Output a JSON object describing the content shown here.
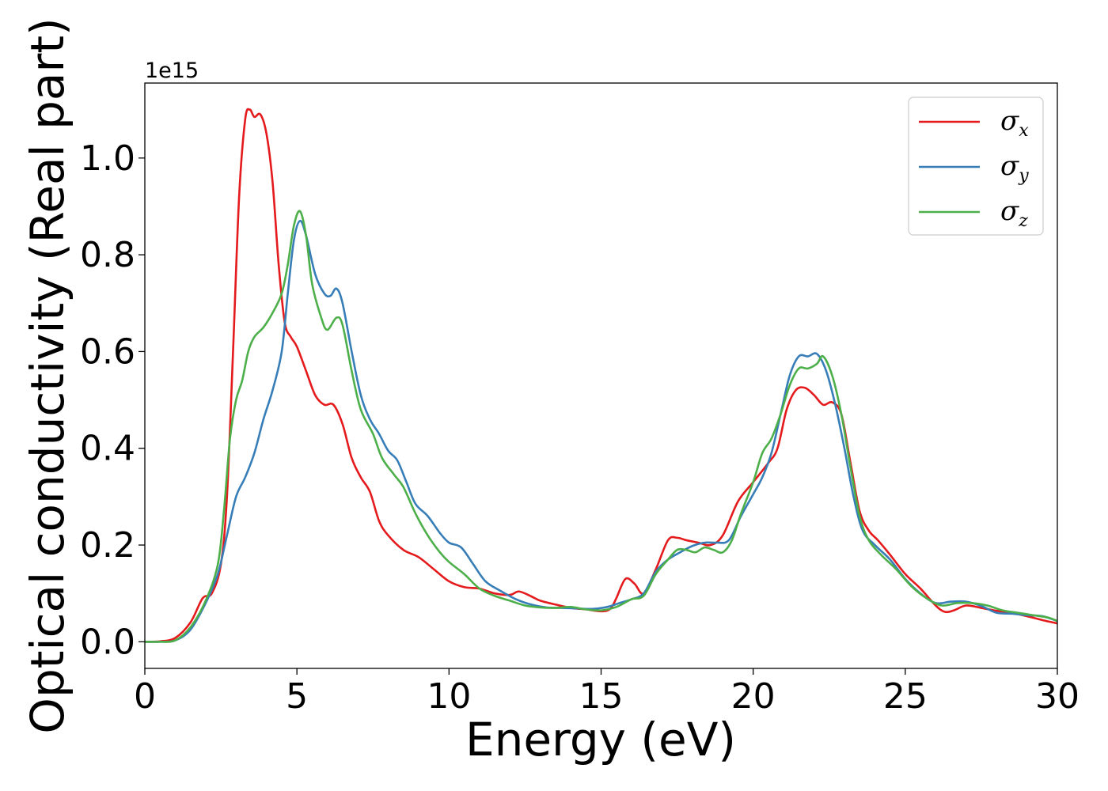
{
  "chart_data": {
    "type": "line",
    "title": "",
    "xlabel": "Energy (eV)",
    "ylabel": "Optical conductivity (Real part)",
    "y_offset_label": "1e15",
    "xlim": [
      0,
      30
    ],
    "ylim": [
      -0.055,
      1.155
    ],
    "y_scale_factor": 1000000000000000.0,
    "x_ticks": [
      0,
      5,
      10,
      15,
      20,
      25,
      30
    ],
    "y_ticks": [
      0.0,
      0.2,
      0.4,
      0.6,
      0.8,
      1.0
    ],
    "x_tick_labels": [
      "0",
      "5",
      "10",
      "15",
      "20",
      "25",
      "30"
    ],
    "y_tick_labels": [
      "0.0",
      "0.2",
      "0.4",
      "0.6",
      "0.8",
      "1.0"
    ],
    "grid": false,
    "legend_position": "top-right",
    "series": [
      {
        "name": "σx",
        "legend_symbol": "σ",
        "legend_subscript": "x",
        "color": "#e41a1c",
        "points": [
          [
            0,
            0.0
          ],
          [
            0.5,
            0.001
          ],
          [
            1.0,
            0.008
          ],
          [
            1.5,
            0.04
          ],
          [
            1.9,
            0.09
          ],
          [
            2.2,
            0.1
          ],
          [
            2.5,
            0.16
          ],
          [
            2.7,
            0.3
          ],
          [
            2.9,
            0.6
          ],
          [
            3.1,
            0.92
          ],
          [
            3.3,
            1.08
          ],
          [
            3.45,
            1.1
          ],
          [
            3.6,
            1.085
          ],
          [
            3.8,
            1.09
          ],
          [
            4.0,
            1.05
          ],
          [
            4.2,
            0.95
          ],
          [
            4.4,
            0.78
          ],
          [
            4.6,
            0.66
          ],
          [
            4.8,
            0.63
          ],
          [
            5.0,
            0.61
          ],
          [
            5.3,
            0.56
          ],
          [
            5.6,
            0.51
          ],
          [
            5.9,
            0.49
          ],
          [
            6.2,
            0.49
          ],
          [
            6.5,
            0.45
          ],
          [
            6.8,
            0.38
          ],
          [
            7.1,
            0.34
          ],
          [
            7.4,
            0.31
          ],
          [
            7.7,
            0.25
          ],
          [
            8.0,
            0.22
          ],
          [
            8.5,
            0.19
          ],
          [
            9.0,
            0.175
          ],
          [
            9.5,
            0.15
          ],
          [
            10.0,
            0.125
          ],
          [
            10.5,
            0.113
          ],
          [
            11.0,
            0.11
          ],
          [
            11.5,
            0.1
          ],
          [
            12.0,
            0.097
          ],
          [
            12.3,
            0.104
          ],
          [
            12.7,
            0.094
          ],
          [
            13.0,
            0.085
          ],
          [
            13.5,
            0.077
          ],
          [
            14.0,
            0.07
          ],
          [
            14.5,
            0.067
          ],
          [
            15.0,
            0.063
          ],
          [
            15.3,
            0.068
          ],
          [
            15.5,
            0.09
          ],
          [
            15.8,
            0.13
          ],
          [
            16.1,
            0.12
          ],
          [
            16.4,
            0.1
          ],
          [
            16.8,
            0.15
          ],
          [
            17.2,
            0.21
          ],
          [
            17.5,
            0.215
          ],
          [
            17.8,
            0.21
          ],
          [
            18.2,
            0.205
          ],
          [
            18.6,
            0.2
          ],
          [
            19.0,
            0.22
          ],
          [
            19.5,
            0.29
          ],
          [
            20.0,
            0.33
          ],
          [
            20.5,
            0.37
          ],
          [
            20.8,
            0.4
          ],
          [
            21.1,
            0.48
          ],
          [
            21.4,
            0.52
          ],
          [
            21.7,
            0.525
          ],
          [
            22.0,
            0.51
          ],
          [
            22.3,
            0.49
          ],
          [
            22.6,
            0.495
          ],
          [
            22.9,
            0.47
          ],
          [
            23.2,
            0.37
          ],
          [
            23.5,
            0.27
          ],
          [
            23.8,
            0.23
          ],
          [
            24.1,
            0.21
          ],
          [
            24.5,
            0.18
          ],
          [
            25.0,
            0.14
          ],
          [
            25.5,
            0.11
          ],
          [
            26.0,
            0.075
          ],
          [
            26.3,
            0.062
          ],
          [
            26.6,
            0.065
          ],
          [
            27.0,
            0.075
          ],
          [
            27.5,
            0.07
          ],
          [
            28.0,
            0.064
          ],
          [
            28.5,
            0.06
          ],
          [
            29.0,
            0.053
          ],
          [
            29.5,
            0.045
          ],
          [
            30.0,
            0.038
          ]
        ]
      },
      {
        "name": "σy",
        "legend_symbol": "σ",
        "legend_subscript": "y",
        "color": "#377eb8",
        "points": [
          [
            0,
            0.0
          ],
          [
            0.5,
            0.0
          ],
          [
            1.0,
            0.003
          ],
          [
            1.5,
            0.025
          ],
          [
            2.0,
            0.08
          ],
          [
            2.4,
            0.14
          ],
          [
            2.7,
            0.22
          ],
          [
            3.0,
            0.3
          ],
          [
            3.3,
            0.34
          ],
          [
            3.6,
            0.39
          ],
          [
            3.9,
            0.46
          ],
          [
            4.2,
            0.52
          ],
          [
            4.5,
            0.6
          ],
          [
            4.7,
            0.72
          ],
          [
            4.9,
            0.83
          ],
          [
            5.1,
            0.87
          ],
          [
            5.3,
            0.84
          ],
          [
            5.6,
            0.76
          ],
          [
            5.9,
            0.72
          ],
          [
            6.1,
            0.715
          ],
          [
            6.3,
            0.73
          ],
          [
            6.5,
            0.7
          ],
          [
            6.8,
            0.6
          ],
          [
            7.1,
            0.51
          ],
          [
            7.4,
            0.46
          ],
          [
            7.7,
            0.43
          ],
          [
            8.0,
            0.395
          ],
          [
            8.3,
            0.375
          ],
          [
            8.6,
            0.33
          ],
          [
            8.9,
            0.285
          ],
          [
            9.3,
            0.26
          ],
          [
            9.7,
            0.225
          ],
          [
            10.0,
            0.205
          ],
          [
            10.4,
            0.195
          ],
          [
            10.8,
            0.16
          ],
          [
            11.2,
            0.125
          ],
          [
            11.7,
            0.105
          ],
          [
            12.2,
            0.088
          ],
          [
            12.7,
            0.077
          ],
          [
            13.2,
            0.071
          ],
          [
            13.7,
            0.07
          ],
          [
            14.2,
            0.069
          ],
          [
            14.7,
            0.068
          ],
          [
            15.2,
            0.072
          ],
          [
            15.6,
            0.08
          ],
          [
            16.0,
            0.088
          ],
          [
            16.4,
            0.1
          ],
          [
            16.8,
            0.145
          ],
          [
            17.2,
            0.17
          ],
          [
            17.6,
            0.185
          ],
          [
            18.0,
            0.198
          ],
          [
            18.4,
            0.205
          ],
          [
            18.8,
            0.205
          ],
          [
            19.2,
            0.21
          ],
          [
            19.6,
            0.26
          ],
          [
            20.0,
            0.305
          ],
          [
            20.3,
            0.34
          ],
          [
            20.6,
            0.39
          ],
          [
            20.9,
            0.47
          ],
          [
            21.2,
            0.55
          ],
          [
            21.5,
            0.59
          ],
          [
            21.8,
            0.59
          ],
          [
            22.1,
            0.595
          ],
          [
            22.4,
            0.56
          ],
          [
            22.7,
            0.49
          ],
          [
            23.0,
            0.4
          ],
          [
            23.3,
            0.3
          ],
          [
            23.6,
            0.23
          ],
          [
            24.0,
            0.2
          ],
          [
            24.5,
            0.17
          ],
          [
            25.0,
            0.13
          ],
          [
            25.5,
            0.1
          ],
          [
            26.0,
            0.08
          ],
          [
            26.5,
            0.083
          ],
          [
            27.0,
            0.083
          ],
          [
            27.5,
            0.074
          ],
          [
            28.0,
            0.06
          ],
          [
            28.5,
            0.058
          ],
          [
            29.0,
            0.055
          ],
          [
            29.5,
            0.053
          ],
          [
            30.0,
            0.043
          ]
        ]
      },
      {
        "name": "σz",
        "legend_symbol": "σ",
        "legend_subscript": "z",
        "color": "#4daf4a",
        "points": [
          [
            0,
            0.0
          ],
          [
            0.5,
            0.0
          ],
          [
            1.0,
            0.003
          ],
          [
            1.5,
            0.03
          ],
          [
            2.0,
            0.085
          ],
          [
            2.4,
            0.16
          ],
          [
            2.6,
            0.27
          ],
          [
            2.8,
            0.42
          ],
          [
            3.0,
            0.5
          ],
          [
            3.2,
            0.54
          ],
          [
            3.4,
            0.6
          ],
          [
            3.6,
            0.63
          ],
          [
            3.9,
            0.65
          ],
          [
            4.2,
            0.68
          ],
          [
            4.5,
            0.72
          ],
          [
            4.7,
            0.78
          ],
          [
            4.9,
            0.86
          ],
          [
            5.1,
            0.89
          ],
          [
            5.3,
            0.84
          ],
          [
            5.5,
            0.74
          ],
          [
            5.8,
            0.67
          ],
          [
            6.0,
            0.645
          ],
          [
            6.3,
            0.67
          ],
          [
            6.5,
            0.655
          ],
          [
            6.8,
            0.56
          ],
          [
            7.1,
            0.48
          ],
          [
            7.5,
            0.43
          ],
          [
            7.8,
            0.38
          ],
          [
            8.2,
            0.345
          ],
          [
            8.5,
            0.32
          ],
          [
            8.9,
            0.265
          ],
          [
            9.3,
            0.22
          ],
          [
            9.7,
            0.185
          ],
          [
            10.0,
            0.165
          ],
          [
            10.5,
            0.14
          ],
          [
            11.0,
            0.11
          ],
          [
            11.5,
            0.095
          ],
          [
            12.0,
            0.085
          ],
          [
            12.5,
            0.075
          ],
          [
            13.0,
            0.071
          ],
          [
            13.5,
            0.07
          ],
          [
            14.0,
            0.072
          ],
          [
            14.5,
            0.067
          ],
          [
            15.0,
            0.065
          ],
          [
            15.5,
            0.072
          ],
          [
            16.0,
            0.088
          ],
          [
            16.4,
            0.095
          ],
          [
            16.8,
            0.14
          ],
          [
            17.2,
            0.17
          ],
          [
            17.5,
            0.19
          ],
          [
            17.8,
            0.19
          ],
          [
            18.1,
            0.185
          ],
          [
            18.4,
            0.195
          ],
          [
            18.7,
            0.19
          ],
          [
            19.0,
            0.185
          ],
          [
            19.3,
            0.21
          ],
          [
            19.6,
            0.265
          ],
          [
            20.0,
            0.33
          ],
          [
            20.3,
            0.39
          ],
          [
            20.6,
            0.42
          ],
          [
            20.9,
            0.47
          ],
          [
            21.2,
            0.53
          ],
          [
            21.5,
            0.565
          ],
          [
            21.8,
            0.565
          ],
          [
            22.1,
            0.575
          ],
          [
            22.3,
            0.59
          ],
          [
            22.6,
            0.55
          ],
          [
            22.9,
            0.47
          ],
          [
            23.2,
            0.36
          ],
          [
            23.5,
            0.26
          ],
          [
            23.8,
            0.21
          ],
          [
            24.2,
            0.18
          ],
          [
            24.7,
            0.15
          ],
          [
            25.2,
            0.115
          ],
          [
            25.7,
            0.09
          ],
          [
            26.2,
            0.075
          ],
          [
            26.7,
            0.08
          ],
          [
            27.2,
            0.08
          ],
          [
            27.7,
            0.075
          ],
          [
            28.2,
            0.065
          ],
          [
            28.7,
            0.06
          ],
          [
            29.2,
            0.055
          ],
          [
            29.7,
            0.05
          ],
          [
            30.0,
            0.043
          ]
        ]
      }
    ]
  }
}
